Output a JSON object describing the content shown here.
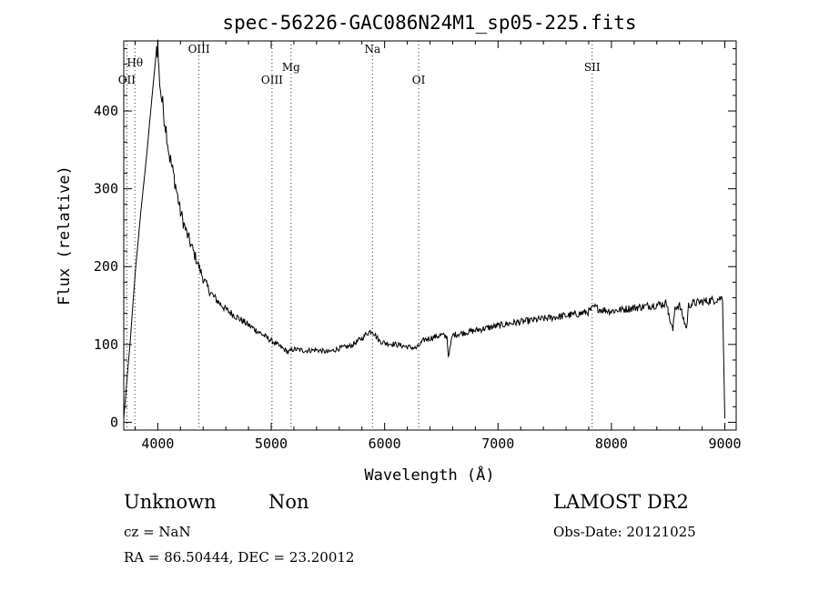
{
  "chart_data": {
    "type": "line",
    "title": "spec-56226-GAC086N24M1_sp05-225.fits",
    "xlabel": "Wavelength (Å)",
    "ylabel": "Flux (relative)",
    "xlim": [
      3700,
      9100
    ],
    "ylim": [
      -10,
      490
    ],
    "xticks": [
      4000,
      5000,
      6000,
      7000,
      8000,
      9000
    ],
    "yticks": [
      0,
      100,
      200,
      300,
      400
    ],
    "grid": false,
    "series": [
      {
        "x": [
          3700,
          3720,
          3760,
          3800,
          3850,
          3900,
          3950,
          3990,
          4000,
          4010,
          4030,
          4050,
          4080,
          4100,
          4150,
          4200,
          4250,
          4300,
          4350,
          4400,
          4450,
          4500,
          4600,
          4700,
          4800,
          4900,
          5000,
          5100,
          5150,
          5200,
          5300,
          5400,
          5500,
          5600,
          5700,
          5800,
          5850,
          5890,
          5920,
          5950,
          6000,
          6100,
          6200,
          6280,
          6300,
          6350,
          6400,
          6500,
          6550,
          6562,
          6600,
          6700,
          6800,
          6900,
          7000,
          7100,
          7200,
          7300,
          7400,
          7500,
          7600,
          7700,
          7800,
          7850,
          7900,
          8000,
          8100,
          8200,
          8300,
          8400,
          8498,
          8500,
          8542,
          8560,
          8600,
          8662,
          8680,
          8700,
          8800,
          8900,
          8980,
          8990,
          9000
        ],
        "values": [
          5,
          40,
          110,
          190,
          270,
          340,
          420,
          480,
          485,
          450,
          420,
          400,
          370,
          345,
          310,
          270,
          245,
          225,
          205,
          185,
          170,
          160,
          145,
          135,
          125,
          115,
          105,
          95,
          90,
          94,
          92,
          93,
          90,
          95,
          98,
          108,
          115,
          118,
          112,
          105,
          102,
          100,
          97,
          95,
          98,
          106,
          108,
          112,
          110,
          85,
          112,
          115,
          118,
          121,
          124,
          127,
          129,
          131,
          133,
          135,
          137,
          139,
          142,
          148,
          145,
          143,
          145,
          147,
          149,
          151,
          153,
          140,
          118,
          148,
          150,
          120,
          150,
          152,
          155,
          157,
          160,
          80,
          5
        ]
      }
    ],
    "lines": [
      {
        "label": "Hθ",
        "x": 3798
      },
      {
        "label": "OII",
        "x": 3727
      },
      {
        "label": "OIII",
        "x": 4363
      },
      {
        "label": "OIII",
        "x": 5007
      },
      {
        "label": "Mg",
        "x": 5175
      },
      {
        "label": "Na",
        "x": 5893
      },
      {
        "label": "OI",
        "x": 6300
      },
      {
        "label": "SII",
        "x": 7830
      }
    ]
  },
  "footer": {
    "object_class": "Unknown",
    "subclass": "Non",
    "survey": "LAMOST DR2",
    "redshift": "cz = NaN",
    "obs_date": "Obs-Date: 20121025",
    "coords": "RA =  86.50444, DEC =  23.20012"
  }
}
